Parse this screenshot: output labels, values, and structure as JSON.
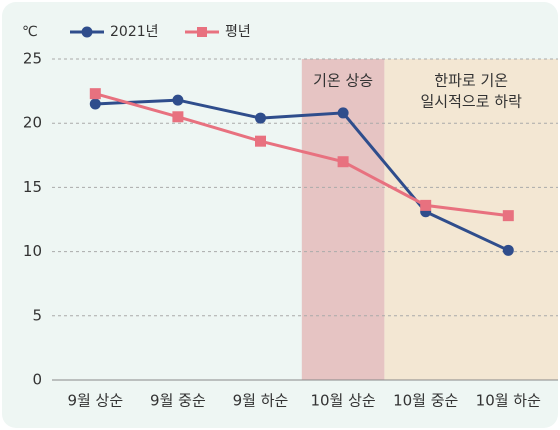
{
  "chart_data": {
    "type": "line",
    "y_label": "℃",
    "categories": [
      "9월 상순",
      "9월 중순",
      "9월 하순",
      "10월 상순",
      "10월 중순",
      "10월 하순"
    ],
    "series": [
      {
        "name": "2021년",
        "color": "#2f4d8c",
        "marker": "circle",
        "values": [
          21.5,
          21.8,
          20.4,
          20.8,
          13.1,
          10.1
        ]
      },
      {
        "name": "평년",
        "color": "#e8717f",
        "marker": "square",
        "values": [
          22.3,
          20.5,
          18.6,
          17.0,
          13.6,
          12.8
        ]
      }
    ],
    "ylim": [
      0,
      25
    ],
    "yticks": [
      0,
      5,
      10,
      15,
      20,
      25
    ],
    "grid": true,
    "annotations": [
      {
        "lines": [
          "기온 상승"
        ],
        "from": 3,
        "to": 3,
        "color": "#e6c4c3"
      },
      {
        "lines": [
          "한파로 기온",
          "일시적으로 하락"
        ],
        "from": 4,
        "to": 5,
        "color": "#f3e7d3"
      }
    ]
  }
}
